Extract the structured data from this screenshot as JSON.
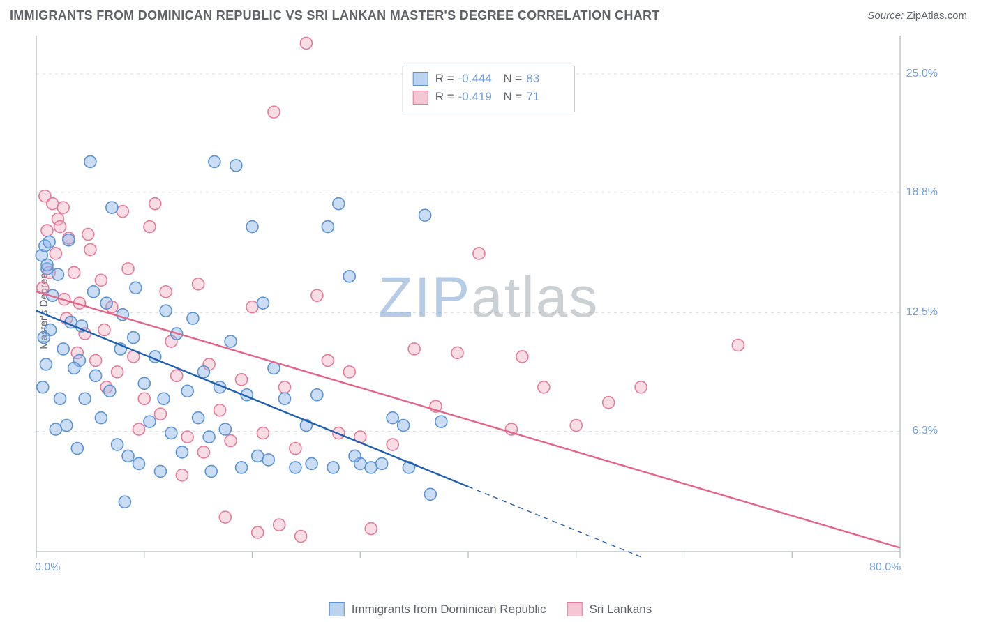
{
  "title": "IMMIGRANTS FROM DOMINICAN REPUBLIC VS SRI LANKAN MASTER'S DEGREE CORRELATION CHART",
  "source_label": "Source: ",
  "source_value": "ZipAtlas.com",
  "ylabel": "Master's Degree",
  "watermark": {
    "z": "ZIP",
    "rest": "atlas"
  },
  "chart": {
    "type": "scatter",
    "background_color": "#ffffff",
    "grid_color": "#d9dde1",
    "axis_color": "#b0b7bf",
    "tick_color": "#b0b7bf",
    "label_color": "#6f9fdc",
    "title_color": "#5f6368",
    "title_fontsize": 18,
    "label_fontsize": 15,
    "tick_fontsize": 16,
    "xlim": [
      0,
      80
    ],
    "ylim": [
      0,
      27
    ],
    "xlim_labels": [
      "0.0%",
      "80.0%"
    ],
    "x_ticks": [
      0,
      10,
      20,
      30,
      40,
      50,
      60,
      70,
      80
    ],
    "y_ticks": [
      {
        "v": 6.3,
        "label": "6.3%"
      },
      {
        "v": 12.5,
        "label": "12.5%"
      },
      {
        "v": 18.8,
        "label": "18.8%"
      },
      {
        "v": 25.0,
        "label": "25.0%"
      }
    ],
    "marker_radius": 8.5,
    "marker_stroke_width": 1.6,
    "trend_line_width": 2.4,
    "series": [
      {
        "name": "Immigrants from Dominican Republic",
        "color_fill": "rgba(140,180,230,0.45)",
        "color_stroke": "#5a93d4",
        "swatch_fill": "#bcd3ef",
        "swatch_border": "#5a93d4",
        "R": "-0.444",
        "N": "83",
        "trend": {
          "x1": 0,
          "y1": 12.6,
          "x2": 40,
          "y2": 3.4,
          "dash_to_x": 56,
          "color": "#1f5fb0"
        },
        "points": [
          [
            0.5,
            15.5
          ],
          [
            0.8,
            16.0
          ],
          [
            1.0,
            14.8
          ],
          [
            1.2,
            16.2
          ],
          [
            1.0,
            15.0
          ],
          [
            1.5,
            13.4
          ],
          [
            2.0,
            14.5
          ],
          [
            1.3,
            11.6
          ],
          [
            3.0,
            16.3
          ],
          [
            0.6,
            8.6
          ],
          [
            2.5,
            10.6
          ],
          [
            3.2,
            12.0
          ],
          [
            4.0,
            10.0
          ],
          [
            5.0,
            20.4
          ],
          [
            7.0,
            18.0
          ],
          [
            6.5,
            13.0
          ],
          [
            8.0,
            12.4
          ],
          [
            9.0,
            11.2
          ],
          [
            5.5,
            9.2
          ],
          [
            4.5,
            8.0
          ],
          [
            6.0,
            7.0
          ],
          [
            7.5,
            5.6
          ],
          [
            3.8,
            5.4
          ],
          [
            2.8,
            6.6
          ],
          [
            10.0,
            8.8
          ],
          [
            11.0,
            10.2
          ],
          [
            12.0,
            12.6
          ],
          [
            13.0,
            11.4
          ],
          [
            14.0,
            8.4
          ],
          [
            15.0,
            7.0
          ],
          [
            16.0,
            6.0
          ],
          [
            9.5,
            4.6
          ],
          [
            8.5,
            5.0
          ],
          [
            11.5,
            4.2
          ],
          [
            13.5,
            5.2
          ],
          [
            17.0,
            8.6
          ],
          [
            18.0,
            11.0
          ],
          [
            16.5,
            20.4
          ],
          [
            18.5,
            20.2
          ],
          [
            20.0,
            17.0
          ],
          [
            21.0,
            13.0
          ],
          [
            22.0,
            9.6
          ],
          [
            23.0,
            8.0
          ],
          [
            19.0,
            4.4
          ],
          [
            20.5,
            5.0
          ],
          [
            24.0,
            4.4
          ],
          [
            25.0,
            6.6
          ],
          [
            26.0,
            8.2
          ],
          [
            27.0,
            17.0
          ],
          [
            28.0,
            18.2
          ],
          [
            29.0,
            14.4
          ],
          [
            30.0,
            4.6
          ],
          [
            31.0,
            4.4
          ],
          [
            32.0,
            4.6
          ],
          [
            33.0,
            7.0
          ],
          [
            34.0,
            6.6
          ],
          [
            36.0,
            17.6
          ],
          [
            14.5,
            12.2
          ],
          [
            15.5,
            9.4
          ],
          [
            12.5,
            6.2
          ],
          [
            6.8,
            8.4
          ],
          [
            3.5,
            9.6
          ],
          [
            2.2,
            8.0
          ],
          [
            1.8,
            6.4
          ],
          [
            0.9,
            9.8
          ],
          [
            0.7,
            11.2
          ],
          [
            4.2,
            11.8
          ],
          [
            5.3,
            13.6
          ],
          [
            7.8,
            10.6
          ],
          [
            9.2,
            13.8
          ],
          [
            10.5,
            6.8
          ],
          [
            11.8,
            8.0
          ],
          [
            17.5,
            6.4
          ],
          [
            19.5,
            8.2
          ],
          [
            21.5,
            4.8
          ],
          [
            25.5,
            4.6
          ],
          [
            27.5,
            4.4
          ],
          [
            29.5,
            5.0
          ],
          [
            34.5,
            4.4
          ],
          [
            36.5,
            3.0
          ],
          [
            37.5,
            6.8
          ],
          [
            16.2,
            4.2
          ],
          [
            8.2,
            2.6
          ]
        ]
      },
      {
        "name": "Sri Lankans",
        "color_fill": "rgba(240,170,190,0.40)",
        "color_stroke": "#e77a99",
        "swatch_fill": "#f5c6d3",
        "swatch_border": "#e77a99",
        "R": "-0.419",
        "N": "71",
        "trend": {
          "x1": 0,
          "y1": 13.6,
          "x2": 80,
          "y2": 0.2,
          "color": "#e36487"
        },
        "points": [
          [
            0.8,
            18.6
          ],
          [
            1.5,
            18.2
          ],
          [
            2.0,
            17.4
          ],
          [
            2.5,
            18.0
          ],
          [
            3.0,
            16.4
          ],
          [
            1.0,
            16.8
          ],
          [
            1.8,
            15.6
          ],
          [
            2.2,
            17.0
          ],
          [
            0.6,
            13.8
          ],
          [
            3.5,
            14.6
          ],
          [
            4.0,
            13.0
          ],
          [
            5.0,
            15.8
          ],
          [
            6.0,
            14.2
          ],
          [
            7.0,
            12.8
          ],
          [
            8.0,
            17.8
          ],
          [
            4.5,
            11.4
          ],
          [
            5.5,
            10.0
          ],
          [
            6.5,
            8.6
          ],
          [
            2.8,
            12.2
          ],
          [
            3.8,
            10.4
          ],
          [
            9.0,
            10.2
          ],
          [
            10.0,
            8.0
          ],
          [
            11.0,
            18.2
          ],
          [
            12.0,
            13.6
          ],
          [
            13.0,
            9.2
          ],
          [
            14.0,
            6.0
          ],
          [
            15.0,
            14.0
          ],
          [
            16.0,
            9.8
          ],
          [
            17.0,
            7.4
          ],
          [
            18.0,
            5.8
          ],
          [
            19.0,
            9.0
          ],
          [
            20.0,
            12.8
          ],
          [
            21.0,
            6.2
          ],
          [
            22.0,
            23.0
          ],
          [
            23.0,
            8.6
          ],
          [
            24.0,
            5.4
          ],
          [
            25.0,
            26.6
          ],
          [
            26.0,
            13.4
          ],
          [
            27.0,
            10.0
          ],
          [
            28.0,
            6.2
          ],
          [
            29.0,
            9.4
          ],
          [
            30.0,
            6.0
          ],
          [
            31.0,
            1.2
          ],
          [
            33.0,
            5.6
          ],
          [
            35.0,
            10.6
          ],
          [
            37.0,
            7.6
          ],
          [
            39.0,
            10.4
          ],
          [
            41.0,
            15.6
          ],
          [
            44.0,
            6.4
          ],
          [
            45.0,
            10.2
          ],
          [
            47.0,
            8.6
          ],
          [
            50.0,
            6.6
          ],
          [
            53.0,
            7.8
          ],
          [
            56.0,
            8.6
          ],
          [
            65.0,
            10.8
          ],
          [
            20.5,
            1.0
          ],
          [
            22.5,
            1.4
          ],
          [
            24.5,
            0.8
          ],
          [
            10.5,
            17.0
          ],
          [
            12.5,
            11.0
          ],
          [
            1.2,
            14.6
          ],
          [
            2.6,
            13.2
          ],
          [
            4.8,
            16.6
          ],
          [
            6.3,
            11.6
          ],
          [
            8.5,
            14.8
          ],
          [
            9.5,
            6.4
          ],
          [
            13.5,
            4.0
          ],
          [
            15.5,
            5.2
          ],
          [
            17.5,
            1.8
          ],
          [
            7.5,
            9.4
          ],
          [
            11.5,
            7.2
          ]
        ]
      }
    ]
  }
}
